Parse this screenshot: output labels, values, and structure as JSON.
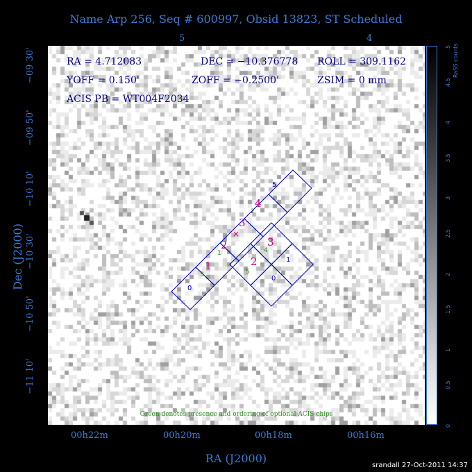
{
  "title": "Name Arp 256, Seq # 600997, Obsid 13823, ST Scheduled",
  "top_ticks": [
    "5",
    "4"
  ],
  "info": {
    "ra": "RA = 4.712083",
    "dec": "DEC = −10.376778",
    "roll": "ROLL = 309.1162",
    "yoff": "YOFF = 0.150'",
    "zoff": "ZOFF = −0.2500'",
    "zsim": "ZSIM = 0 mm",
    "acis": "ACIS PB = WT004F2034"
  },
  "note": "Green denotes presence and ordering of optional ACIS chips",
  "x_ticks": [
    "00h22m",
    "00h20m",
    "00h18m",
    "00h16m"
  ],
  "x_label": "RA (J2000)",
  "y_ticks": [
    "−09 30'",
    "−09 50'",
    "−10 10'",
    "−10 30'",
    "−10 50'",
    "−11 10'"
  ],
  "y_label": "Dec (J2000)",
  "colorbar": {
    "label": "RaSS counts",
    "ticks": [
      "0",
      "0.5",
      "1",
      "1.5",
      "2",
      "2.5",
      "3",
      "3.5",
      "4",
      "4.5",
      "5"
    ]
  },
  "chips_s": {
    "blue": [
      "0",
      "1",
      "2",
      "3",
      "4",
      "5"
    ],
    "magenta": [
      "1",
      "2",
      "3",
      "4"
    ],
    "green": [
      "3",
      "1",
      "2"
    ]
  },
  "chips_i": {
    "blue": [
      "0",
      "1",
      "2",
      "3"
    ],
    "magenta": [
      "2",
      "3"
    ],
    "green": [
      "5",
      "4"
    ]
  },
  "colors": {
    "axis": "#3a7bd5",
    "chip_outline": "#0000cc",
    "magenta": "#cc0077",
    "green": "#2a8a1f"
  },
  "footer": "srandall 27-Oct-2011 14:37"
}
